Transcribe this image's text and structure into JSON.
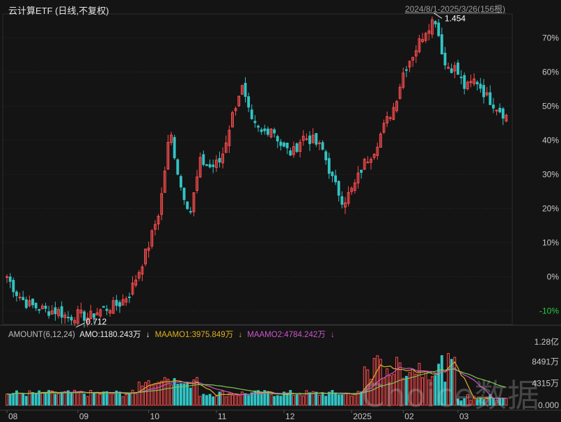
{
  "header": {
    "title": "云计算ETF (日线,不复权)",
    "range": "2024/8/1-2025/3/26(156根)"
  },
  "indicator": {
    "name": "AMOUNT(6,12,24)",
    "amo": "AMO:1180.243万",
    "amo_arrow": "↓",
    "ma1": "MAAMO1:3975.849万",
    "ma1_arrow": "↓",
    "ma2": "MAAMO2:4784.242万",
    "ma2_arrow": "↓"
  },
  "watermark": "Choice数据",
  "colors": {
    "up": "#ff4d4f",
    "down": "#33c3c3",
    "ma1": "#e0b020",
    "ma2": "#cc55cc",
    "ma3": "#7ec850",
    "neg_label": "#22cc44"
  },
  "chart_data": {
    "type": "candlestick",
    "x_tick_labels": [
      "08",
      "09",
      "10",
      "11",
      "12",
      "2025",
      "02",
      "03"
    ],
    "y_axis_labels": [
      "70%",
      "60%",
      "50%",
      "40%",
      "30%",
      "20%",
      "10%",
      "0%",
      "-10%"
    ],
    "y_range_pct": [
      -14,
      77
    ],
    "max_label": "1.454",
    "min_label": "0.712",
    "volume_axis_labels": [
      "1.28亿",
      "8491万",
      "4315万",
      "0.000"
    ],
    "close_pct_key": [
      0,
      -5,
      -8,
      -9,
      -10,
      -10,
      -12,
      -11,
      -12,
      -10,
      -9,
      -8,
      -5,
      2,
      10,
      20,
      43,
      27,
      19,
      34,
      32,
      34,
      46,
      56,
      45,
      42,
      44,
      38,
      36,
      41,
      40,
      37,
      28,
      22,
      26,
      33,
      37,
      44,
      50,
      61,
      66,
      72,
      76,
      62,
      61,
      55,
      58,
      53,
      50,
      47
    ]
  }
}
